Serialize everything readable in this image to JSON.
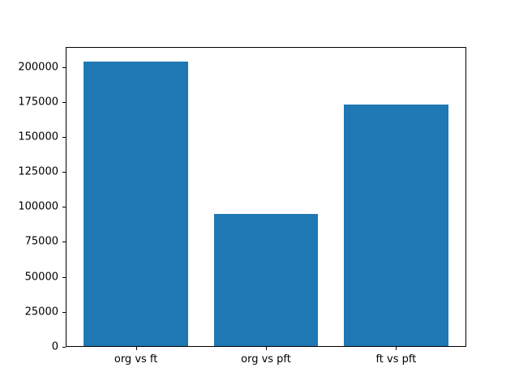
{
  "figure": {
    "background": "#ffffff"
  },
  "chart_data": {
    "type": "bar",
    "categories": [
      "org vs ft",
      "org vs pft",
      "ft vs pft"
    ],
    "values": [
      204000,
      95000,
      173000
    ],
    "title": "",
    "xlabel": "",
    "ylabel": "",
    "ylim": [
      0,
      214200
    ],
    "xlim": [
      -0.54,
      2.54
    ],
    "yticks": [
      0,
      25000,
      50000,
      75000,
      100000,
      125000,
      150000,
      175000,
      200000
    ],
    "bar_color": "#1f77b4",
    "bar_width_fraction": 0.8,
    "grid": false,
    "legend": "none",
    "axis_color": "#000000",
    "tick_label_color": "#000000"
  }
}
